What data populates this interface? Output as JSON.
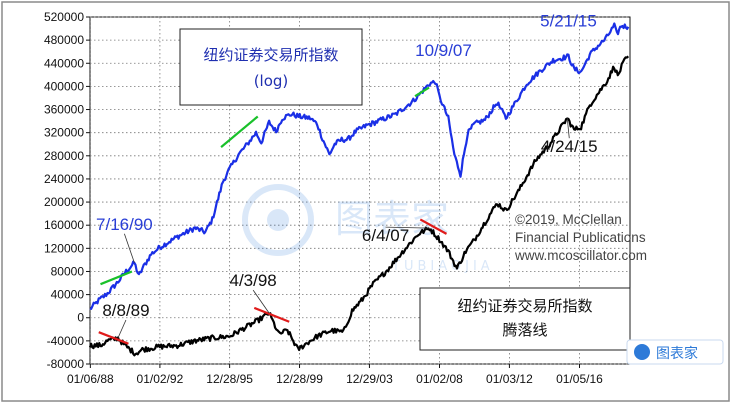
{
  "chart_data": {
    "type": "line",
    "x_tick_labels": [
      "01/06/88",
      "01/02/92",
      "12/28/95",
      "12/28/99",
      "12/29/03",
      "01/02/08",
      "01/03/12",
      "01/05/16"
    ],
    "x_tick_years": [
      1988.02,
      1992.0,
      1995.99,
      1999.99,
      2003.99,
      2008.0,
      2012.0,
      2016.01
    ],
    "x_range": [
      1988.0,
      2018.9
    ],
    "ylim": [
      -80000,
      520000
    ],
    "y_ticks": [
      520000,
      480000,
      440000,
      400000,
      360000,
      320000,
      280000,
      240000,
      200000,
      160000,
      120000,
      80000,
      40000,
      0,
      -40000,
      -80000
    ],
    "y_tick_labels": [
      "520000",
      "480000",
      "440000",
      "400000",
      "360000",
      "320000",
      "280000",
      "240000",
      "200000",
      "160000",
      "120000",
      "80000",
      "40000",
      "0",
      "-40000",
      "-80000"
    ],
    "grid": true,
    "series": [
      {
        "name": "纽约证券交易所指数 (log)",
        "color": "#1a2fe6",
        "points": [
          [
            1988.0,
            15000
          ],
          [
            1988.5,
            30000
          ],
          [
            1989.0,
            42000
          ],
          [
            1989.6,
            62000
          ],
          [
            1990.0,
            78000
          ],
          [
            1990.54,
            95000
          ],
          [
            1990.8,
            72000
          ],
          [
            1991.0,
            85000
          ],
          [
            1991.5,
            110000
          ],
          [
            1992.0,
            122000
          ],
          [
            1993.0,
            140000
          ],
          [
            1994.0,
            155000
          ],
          [
            1994.6,
            148000
          ],
          [
            1995.0,
            170000
          ],
          [
            1995.6,
            235000
          ],
          [
            1996.0,
            258000
          ],
          [
            1996.5,
            282000
          ],
          [
            1997.0,
            300000
          ],
          [
            1997.5,
            320000
          ],
          [
            1997.8,
            303000
          ],
          [
            1998.25,
            338000
          ],
          [
            1998.65,
            322000
          ],
          [
            1999.0,
            345000
          ],
          [
            1999.5,
            352000
          ],
          [
            2000.0,
            348000
          ],
          [
            2000.6,
            345000
          ],
          [
            2001.0,
            335000
          ],
          [
            2001.3,
            310000
          ],
          [
            2001.7,
            282000
          ],
          [
            2002.0,
            300000
          ],
          [
            2002.4,
            308000
          ],
          [
            2002.75,
            308000
          ],
          [
            2003.2,
            322000
          ],
          [
            2003.8,
            332000
          ],
          [
            2004.5,
            340000
          ],
          [
            2005.5,
            352000
          ],
          [
            2006.5,
            375000
          ],
          [
            2007.44,
            405000
          ],
          [
            2007.77,
            408000
          ],
          [
            2008.0,
            382000
          ],
          [
            2008.5,
            345000
          ],
          [
            2008.85,
            282000
          ],
          [
            2009.2,
            248000
          ],
          [
            2009.6,
            318000
          ],
          [
            2010.0,
            335000
          ],
          [
            2010.6,
            342000
          ],
          [
            2011.3,
            372000
          ],
          [
            2011.8,
            345000
          ],
          [
            2012.5,
            380000
          ],
          [
            2013.0,
            405000
          ],
          [
            2013.8,
            428000
          ],
          [
            2014.5,
            445000
          ],
          [
            2015.38,
            452000
          ],
          [
            2015.7,
            430000
          ],
          [
            2016.1,
            425000
          ],
          [
            2016.6,
            455000
          ],
          [
            2017.0,
            468000
          ],
          [
            2017.5,
            482000
          ],
          [
            2018.0,
            505000
          ],
          [
            2018.15,
            490000
          ],
          [
            2018.4,
            505000
          ],
          [
            2018.8,
            503000
          ]
        ]
      },
      {
        "name": "纽约证券交易所指数 腾落线",
        "color": "#000000",
        "points": [
          [
            1988.0,
            -48000
          ],
          [
            1988.6,
            -48000
          ],
          [
            1989.0,
            -40000
          ],
          [
            1989.6,
            -35000
          ],
          [
            1990.0,
            -48000
          ],
          [
            1990.6,
            -62000
          ],
          [
            1991.0,
            -55000
          ],
          [
            1992.0,
            -50000
          ],
          [
            1993.0,
            -48000
          ],
          [
            1994.0,
            -40000
          ],
          [
            1995.0,
            -35000
          ],
          [
            1996.0,
            -32000
          ],
          [
            1997.0,
            -15000
          ],
          [
            1997.6,
            -5000
          ],
          [
            1998.25,
            8000
          ],
          [
            1998.8,
            -28000
          ],
          [
            1999.3,
            -22000
          ],
          [
            1999.9,
            -55000
          ],
          [
            2000.5,
            -42000
          ],
          [
            2001.0,
            -32000
          ],
          [
            2001.8,
            -22000
          ],
          [
            2002.5,
            -25000
          ],
          [
            2003.0,
            12000
          ],
          [
            2003.6,
            32000
          ],
          [
            2004.2,
            58000
          ],
          [
            2005.0,
            82000
          ],
          [
            2006.0,
            118000
          ],
          [
            2006.8,
            145000
          ],
          [
            2007.43,
            155000
          ],
          [
            2008.0,
            135000
          ],
          [
            2008.5,
            115000
          ],
          [
            2009.0,
            85000
          ],
          [
            2009.5,
            115000
          ],
          [
            2010.0,
            135000
          ],
          [
            2010.6,
            165000
          ],
          [
            2011.3,
            198000
          ],
          [
            2011.8,
            185000
          ],
          [
            2012.5,
            218000
          ],
          [
            2013.5,
            272000
          ],
          [
            2014.3,
            300000
          ],
          [
            2015.31,
            345000
          ],
          [
            2015.7,
            325000
          ],
          [
            2016.1,
            330000
          ],
          [
            2016.6,
            368000
          ],
          [
            2017.0,
            385000
          ],
          [
            2017.6,
            410000
          ],
          [
            2018.0,
            435000
          ],
          [
            2018.2,
            418000
          ],
          [
            2018.5,
            440000
          ],
          [
            2018.8,
            452000
          ]
        ]
      }
    ],
    "annotations": [
      {
        "text": "7/16/90",
        "series": 0,
        "x": 1990.54,
        "y": 95000
      },
      {
        "text": "10/9/07",
        "series": 0,
        "x": 2007.77,
        "y": 408000
      },
      {
        "text": "5/21/15",
        "series": 0,
        "x": 2015.38,
        "y": 452000
      },
      {
        "text": "8/8/89",
        "series": 1,
        "x": 1989.6,
        "y": -35000
      },
      {
        "text": "4/3/98",
        "series": 1,
        "x": 1998.25,
        "y": 8000
      },
      {
        "text": "6/4/07",
        "series": 1,
        "x": 2007.43,
        "y": 155000
      },
      {
        "text": "4/24/15",
        "series": 1,
        "x": 2015.31,
        "y": 345000
      }
    ],
    "trend_segments": [
      {
        "color": "#19c12a",
        "from": [
          1988.6,
          58000
        ],
        "to": [
          1990.4,
          80000
        ]
      },
      {
        "color": "#19c12a",
        "from": [
          1995.5,
          295000
        ],
        "to": [
          1997.6,
          348000
        ]
      },
      {
        "color": "#19c12a",
        "from": [
          2006.6,
          383000
        ],
        "to": [
          2007.4,
          398000
        ]
      },
      {
        "color": "#e01b1b",
        "from": [
          1988.5,
          -25000
        ],
        "to": [
          1990.2,
          -45000
        ]
      },
      {
        "color": "#e01b1b",
        "from": [
          1997.4,
          17000
        ],
        "to": [
          1999.4,
          -7000
        ]
      },
      {
        "color": "#e01b1b",
        "from": [
          2006.9,
          170000
        ],
        "to": [
          2008.4,
          145000
        ]
      }
    ],
    "legend_box_top": {
      "line1": "纽约证券交易所指数",
      "line2": "(log)"
    },
    "legend_box_bottom": {
      "line1": "纽约证券交易所指数",
      "line2": "腾落线"
    },
    "copyright": [
      "©2019, McClellan",
      "Financial Publications",
      "www.mcoscillator.com"
    ],
    "watermark": {
      "text": "图表家",
      "subtext": "TUBIAOJIA"
    }
  }
}
